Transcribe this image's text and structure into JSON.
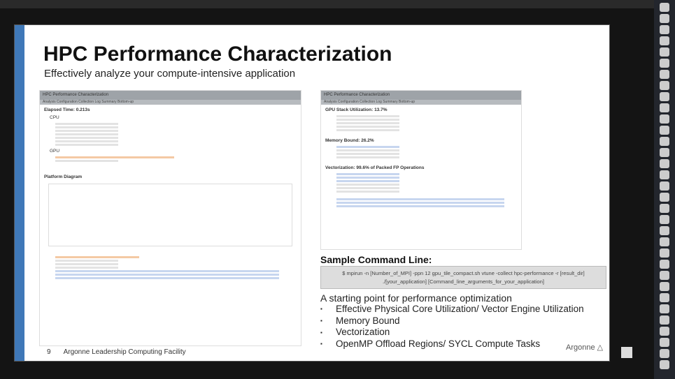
{
  "slide": {
    "title": "HPC Performance Characterization",
    "subtitle": "Effectively analyze your compute-intensive application",
    "left_screenshot": {
      "header": "HPC Performance Characterization",
      "tabs": "Analysis Configuration   Collection Log   Summary   Bottom-up",
      "elapsed": "Elapsed Time: 0.213s",
      "cpu": "CPU",
      "gpu": "GPU",
      "platform": "Platform Diagram"
    },
    "right_screenshot": {
      "header": "HPC Performance Characterization",
      "tabs": "Analysis Configuration   Collection Log   Summary   Bottom-up",
      "gpu_util": "GPU Stack Utilization: 13.7%",
      "memory": "Memory Bound: 26.2%",
      "vector": "Vectorization: 99.6% of Packed FP Operations"
    },
    "command_label": "Sample Command Line:",
    "command": "$ mpirun -n [Number_of_MPI] -ppn 12 gpu_tile_compact.sh vtune -collect hpc-performance -r [result_dir] ./[your_application] [Command_line_arguments_for_your_application]",
    "intro": "A starting point for performance optimization",
    "bullets": [
      "Effective Physical Core Utilization/ Vector Engine Utilization",
      "Memory Bound",
      "Vectorization",
      "OpenMP Offload Regions/ SYCL Compute Tasks"
    ],
    "page_number": "9",
    "footer": "Argonne Leadership Computing Facility",
    "logo": "Argonne"
  },
  "colors": {
    "accent": "#3f78b8"
  }
}
